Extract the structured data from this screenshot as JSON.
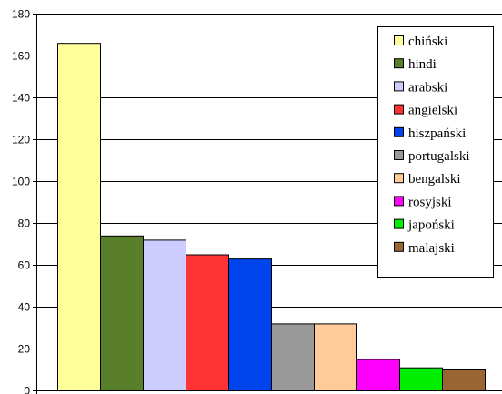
{
  "chart_data": {
    "type": "bar",
    "title": "",
    "xlabel": "",
    "ylabel": "",
    "ylim": [
      0,
      180
    ],
    "yticks": [
      0,
      20,
      40,
      60,
      80,
      100,
      120,
      140,
      160,
      180
    ],
    "grid": "horizontal",
    "legend_position": "top-right",
    "series": [
      {
        "name": "chiński",
        "value": 166,
        "color": "#ffff99"
      },
      {
        "name": "hindi",
        "value": 74,
        "color": "#5a7f2a"
      },
      {
        "name": "arabski",
        "value": 72,
        "color": "#ccccff"
      },
      {
        "name": "angielski",
        "value": 65,
        "color": "#ff3333"
      },
      {
        "name": "hiszpański",
        "value": 63,
        "color": "#0044ee"
      },
      {
        "name": "portugalski",
        "value": 32,
        "color": "#999999"
      },
      {
        "name": "bengalski",
        "value": 32,
        "color": "#ffcc99"
      },
      {
        "name": "rosyjski",
        "value": 15,
        "color": "#ff00ff"
      },
      {
        "name": "japoński",
        "value": 11,
        "color": "#00ee00"
      },
      {
        "name": "malajski",
        "value": 10,
        "color": "#996633"
      }
    ]
  }
}
